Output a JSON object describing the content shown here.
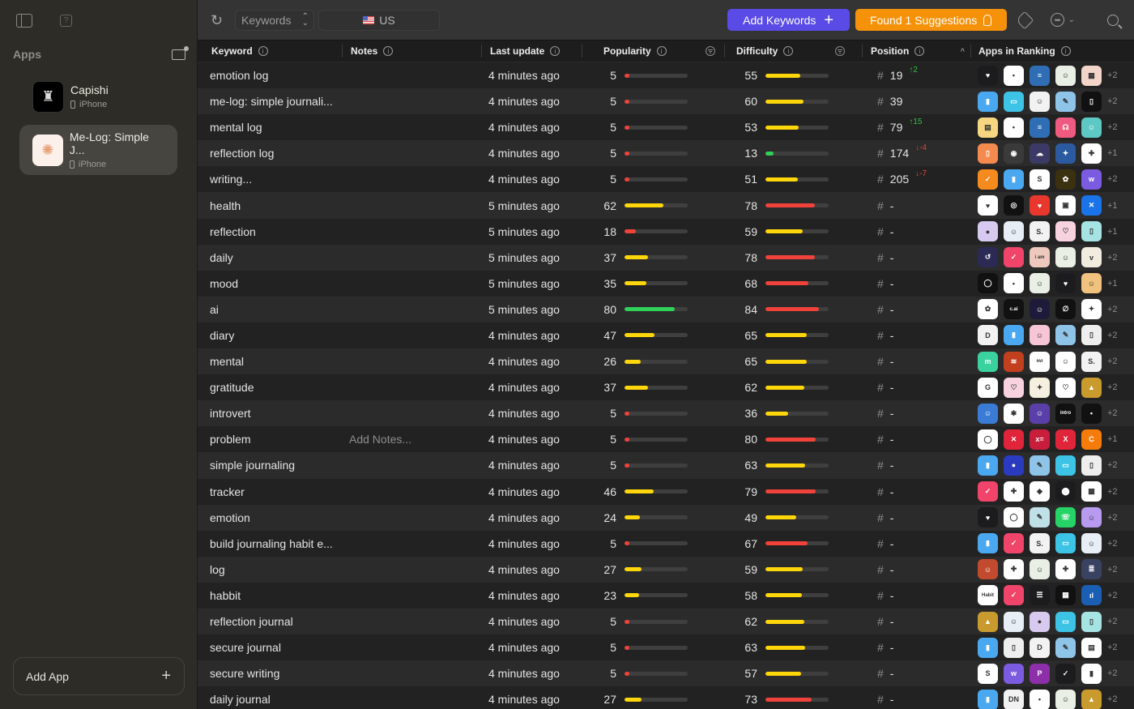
{
  "sidebar": {
    "section_title": "Apps",
    "apps": [
      {
        "name": "Capishi",
        "platform": "iPhone",
        "selected": false
      },
      {
        "name": "Me-Log: Simple J...",
        "platform": "iPhone",
        "selected": true
      }
    ],
    "add_app_label": "Add App"
  },
  "toolbar": {
    "mode_select": "Keywords",
    "country": "US",
    "add_keywords_label": "Add Keywords",
    "suggestions_label": "Found 1 Suggestions"
  },
  "colors": {
    "accent_purple": "#5a4be6",
    "accent_orange": "#f5920a",
    "bar_red": "#f0423a",
    "bar_yellow": "#ffd60a",
    "bar_green": "#30d158",
    "delta_up": "#2fc246",
    "delta_down": "#e6423c"
  },
  "table": {
    "headers": {
      "keyword": "Keyword",
      "notes": "Notes",
      "last_update": "Last update",
      "popularity": "Popularity",
      "difficulty": "Difficulty",
      "position": "Position",
      "apps_in_ranking": "Apps in Ranking"
    },
    "rows": [
      {
        "keyword": "emotion log",
        "notes": "",
        "updated": "4 minutes ago",
        "popularity": 5,
        "difficulty": 55,
        "position": "19",
        "delta": "↑2",
        "delta_dir": "up",
        "apps": [
          "#1c1c1e|♥",
          "#ffffff|•",
          "#2f6db5|≡",
          "#e9efe5|☺",
          "#f3d4c8|▦"
        ],
        "more": "+2"
      },
      {
        "keyword": "me-log: simple journali...",
        "notes": "",
        "updated": "4 minutes ago",
        "popularity": 5,
        "difficulty": 60,
        "position": "39",
        "delta": "",
        "delta_dir": "",
        "apps": [
          "#4aa8f0|▮",
          "#3cc3e6|▭",
          "#f2f2f2|☺",
          "#8ec4e8|✎",
          "#111111|▯"
        ],
        "more": "+2"
      },
      {
        "keyword": "mental log",
        "notes": "",
        "updated": "4 minutes ago",
        "popularity": 5,
        "difficulty": 53,
        "position": "79",
        "delta": "↑15",
        "delta_dir": "up",
        "apps": [
          "#f6d680|▤",
          "#ffffff|•",
          "#2f6db5|≡",
          "#ef5b80|☊",
          "#5ec8c4|☺"
        ],
        "more": "+2"
      },
      {
        "keyword": "reflection log",
        "notes": "",
        "updated": "4 minutes ago",
        "popularity": 5,
        "difficulty": 13,
        "position": "174",
        "delta": "↓-4",
        "delta_dir": "down",
        "apps": [
          "#f58a4e|▯",
          "#3a3a3a|◉",
          "#3b3a66|☁",
          "#2c5aa0|✦",
          "#ffffff|✚"
        ],
        "more": "+1"
      },
      {
        "keyword": "writing...",
        "notes": "",
        "updated": "4 minutes ago",
        "popularity": 5,
        "difficulty": 51,
        "position": "205",
        "delta": "↓-7",
        "delta_dir": "down",
        "apps": [
          "#f58a1e|✓",
          "#4aa8f0|▮",
          "#ffffff|S",
          "#3b3010|✿",
          "#7b5be0|w"
        ],
        "more": "+2"
      },
      {
        "keyword": "health",
        "notes": "",
        "updated": "5 minutes ago",
        "popularity": 62,
        "difficulty": 78,
        "position": "-",
        "delta": "",
        "delta_dir": "",
        "apps": [
          "#ffffff|♥",
          "#111111|◎",
          "#e8372d|♥",
          "#ffffff|▣",
          "#1a73e8|✕"
        ],
        "more": "+1"
      },
      {
        "keyword": "reflection",
        "notes": "",
        "updated": "5 minutes ago",
        "popularity": 18,
        "difficulty": 59,
        "position": "-",
        "delta": "",
        "delta_dir": "",
        "apps": [
          "#d7c9f0|●",
          "#e8eef5|☺",
          "#f2f2f2|S.",
          "#f8d3df|♡",
          "#a6e3e3|▯"
        ],
        "more": "+1"
      },
      {
        "keyword": "daily",
        "notes": "",
        "updated": "5 minutes ago",
        "popularity": 37,
        "difficulty": 78,
        "position": "-",
        "delta": "",
        "delta_dir": "",
        "apps": [
          "#2a2a55|↺",
          "#f0446a|✓",
          "#efc8bd|i am",
          "#e9efe5|☺",
          "#f2ece0|v"
        ],
        "more": "+2"
      },
      {
        "keyword": "mood",
        "notes": "",
        "updated": "5 minutes ago",
        "popularity": 35,
        "difficulty": 68,
        "position": "-",
        "delta": "",
        "delta_dir": "",
        "apps": [
          "#111111|◯",
          "#ffffff|•",
          "#e9efe5|☺",
          "#1c1c1e|♥",
          "#f1c27d|☺"
        ],
        "more": "+1"
      },
      {
        "keyword": "ai",
        "notes": "",
        "updated": "5 minutes ago",
        "popularity": 80,
        "difficulty": 84,
        "position": "-",
        "delta": "",
        "delta_dir": "",
        "apps": [
          "#ffffff|✿",
          "#111111|c.ai",
          "#1e1b3a|☺",
          "#111111|∅",
          "#ffffff|✦"
        ],
        "more": "+2"
      },
      {
        "keyword": "diary",
        "notes": "",
        "updated": "4 minutes ago",
        "popularity": 47,
        "difficulty": 65,
        "position": "-",
        "delta": "",
        "delta_dir": "",
        "apps": [
          "#f2f2f2|D",
          "#4aa8f0|▮",
          "#f6c6d6|☺",
          "#8ec4e8|✎",
          "#eeeeee|▯"
        ],
        "more": "+2"
      },
      {
        "keyword": "mental",
        "notes": "",
        "updated": "4 minutes ago",
        "popularity": 26,
        "difficulty": 65,
        "position": "-",
        "delta": "",
        "delta_dir": "",
        "apps": [
          "#3ad29f|m",
          "#c2401e|≋",
          "#ffffff|ıwı",
          "#ffffff|☺",
          "#f2f2f2|S."
        ],
        "more": "+2"
      },
      {
        "keyword": "gratitude",
        "notes": "",
        "updated": "4 minutes ago",
        "popularity": 37,
        "difficulty": 62,
        "position": "-",
        "delta": "",
        "delta_dir": "",
        "apps": [
          "#ffffff|G",
          "#f8d3df|♡",
          "#f5efe0|✦",
          "#ffffff|♡",
          "#c99a2e|▲"
        ],
        "more": "+2"
      },
      {
        "keyword": "introvert",
        "notes": "",
        "updated": "4 minutes ago",
        "popularity": 5,
        "difficulty": 36,
        "position": "-",
        "delta": "",
        "delta_dir": "",
        "apps": [
          "#3a7bd5|☺",
          "#ffffff|✱",
          "#5b3fa8|☺",
          "#111111|intro",
          "#111111|•"
        ],
        "more": "+2"
      },
      {
        "keyword": "problem",
        "notes": "Add Notes...",
        "updated": "4 minutes ago",
        "popularity": 5,
        "difficulty": 80,
        "position": "-",
        "delta": "",
        "delta_dir": "",
        "apps": [
          "#ffffff|◯",
          "#e0243a|✕",
          "#c81e3c|x=",
          "#e0243a|X",
          "#f57c0b|C"
        ],
        "more": "+1"
      },
      {
        "keyword": "simple journaling",
        "notes": "",
        "updated": "4 minutes ago",
        "popularity": 5,
        "difficulty": 63,
        "position": "-",
        "delta": "",
        "delta_dir": "",
        "apps": [
          "#4aa8f0|▮",
          "#2b3bbf|●",
          "#8ec4e8|✎",
          "#3cc3e6|▭",
          "#eeeeee|▯"
        ],
        "more": "+2"
      },
      {
        "keyword": "tracker",
        "notes": "",
        "updated": "4 minutes ago",
        "popularity": 46,
        "difficulty": 79,
        "position": "-",
        "delta": "",
        "delta_dir": "",
        "apps": [
          "#f0446a|✓",
          "#ffffff|✚",
          "#ffffff|◆",
          "#1c1c1e|⬤",
          "#ffffff|▩"
        ],
        "more": "+2"
      },
      {
        "keyword": "emotion",
        "notes": "",
        "updated": "4 minutes ago",
        "popularity": 24,
        "difficulty": 49,
        "position": "-",
        "delta": "",
        "delta_dir": "",
        "apps": [
          "#1c1c1e|♥",
          "#ffffff|◯",
          "#bfe0e6|✎",
          "#25d366|☏",
          "#b89af0|☺"
        ],
        "more": "+2"
      },
      {
        "keyword": "build journaling habit e...",
        "notes": "",
        "updated": "4 minutes ago",
        "popularity": 5,
        "difficulty": 67,
        "position": "-",
        "delta": "",
        "delta_dir": "",
        "apps": [
          "#4aa8f0|▮",
          "#f0446a|✓",
          "#f2f2f2|S.",
          "#3cc3e6|▭",
          "#e8eef5|☺"
        ],
        "more": "+2"
      },
      {
        "keyword": "log",
        "notes": "",
        "updated": "4 minutes ago",
        "popularity": 27,
        "difficulty": 59,
        "position": "-",
        "delta": "",
        "delta_dir": "",
        "apps": [
          "#c24a2e|☺",
          "#ffffff|✚",
          "#e9efe5|☺",
          "#ffffff|✚",
          "#3a4262|≣"
        ],
        "more": "+2"
      },
      {
        "keyword": "habbit",
        "notes": "",
        "updated": "4 minutes ago",
        "popularity": 23,
        "difficulty": 58,
        "position": "-",
        "delta": "",
        "delta_dir": "",
        "apps": [
          "#ffffff|Habit",
          "#f0446a|✓",
          "#1c1c1e|☰",
          "#111111|▦",
          "#1a5fb4|ıl"
        ],
        "more": "+2"
      },
      {
        "keyword": "reflection journal",
        "notes": "",
        "updated": "4 minutes ago",
        "popularity": 5,
        "difficulty": 62,
        "position": "-",
        "delta": "",
        "delta_dir": "",
        "apps": [
          "#c99a2e|▲",
          "#e8eef5|☺",
          "#d7c9f0|●",
          "#3cc3e6|▭",
          "#a6e3e3|▯"
        ],
        "more": "+2"
      },
      {
        "keyword": "secure journal",
        "notes": "",
        "updated": "4 minutes ago",
        "popularity": 5,
        "difficulty": 63,
        "position": "-",
        "delta": "",
        "delta_dir": "",
        "apps": [
          "#4aa8f0|▮",
          "#eeeeee|▯",
          "#f2f2f2|D",
          "#8ec4e8|✎",
          "#ffffff|▤"
        ],
        "more": "+2"
      },
      {
        "keyword": "secure writing",
        "notes": "",
        "updated": "4 minutes ago",
        "popularity": 5,
        "difficulty": 57,
        "position": "-",
        "delta": "",
        "delta_dir": "",
        "apps": [
          "#ffffff|S",
          "#7b5be0|w",
          "#8c2fa8|P",
          "#1c1c1e|✓",
          "#ffffff|▮"
        ],
        "more": "+2"
      },
      {
        "keyword": "daily journal",
        "notes": "",
        "updated": "4 minutes ago",
        "popularity": 27,
        "difficulty": 73,
        "position": "-",
        "delta": "",
        "delta_dir": "",
        "apps": [
          "#4aa8f0|▮",
          "#f2f2f2|DN",
          "#ffffff|•",
          "#e9efe5|☺",
          "#c99a2e|▲"
        ],
        "more": "+2"
      }
    ]
  }
}
